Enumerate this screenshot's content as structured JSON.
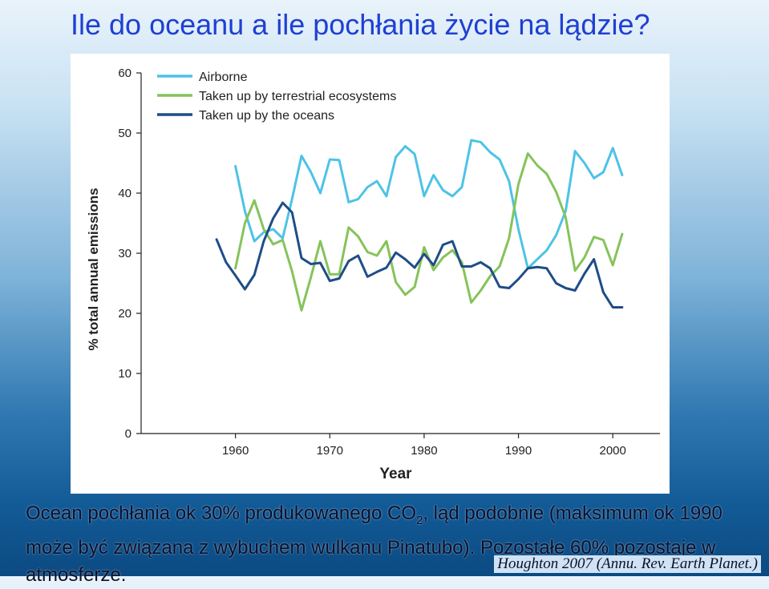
{
  "slide": {
    "title": "Ile do oceanu a ile pochłania życie na lądzie?",
    "caption_part1": "Ocean pochłania ok 30% produkowanego CO",
    "caption_sub": "2",
    "caption_part2": ", ląd podobnie (maksimum ok 1990 może być związana z wybuchem wulkanu Pinatubo). Pozostałe 60% pozostaje w atmosferze.",
    "citation": "Houghton 2007 (Annu. Rev. Earth Planet.)"
  },
  "chart_data": {
    "type": "line",
    "xlabel": "Year",
    "ylabel": "% total annual emissions",
    "xlim": [
      1950,
      2005
    ],
    "ylim": [
      0,
      60
    ],
    "xticks": [
      1960,
      1970,
      1980,
      1990,
      2000
    ],
    "yticks": [
      0,
      10,
      20,
      30,
      40,
      50,
      60
    ],
    "grid": false,
    "legend": "top-left",
    "series": [
      {
        "name": "Airborne",
        "color": "#4dc3e6",
        "x": [
          1960,
          1961,
          1962,
          1963,
          1964,
          1965,
          1966,
          1967,
          1968,
          1969,
          1970,
          1971,
          1972,
          1973,
          1974,
          1975,
          1976,
          1977,
          1978,
          1979,
          1980,
          1981,
          1982,
          1983,
          1984,
          1985,
          1986,
          1987,
          1988,
          1989,
          1990,
          1991,
          1992,
          1993,
          1994,
          1995,
          1996,
          1997,
          1998,
          1999,
          2000,
          2001
        ],
        "y": [
          44.5,
          37,
          32,
          33.5,
          34,
          32.5,
          39,
          46.2,
          43.5,
          40,
          45.6,
          45.5,
          38.5,
          39,
          41,
          42,
          39.5,
          46,
          47.8,
          46.5,
          39.5,
          43,
          40.5,
          39.5,
          41,
          48.8,
          48.5,
          46.8,
          45.6,
          42,
          34,
          27.5,
          29,
          30.5,
          33,
          37,
          47,
          45,
          42.5,
          43.5,
          47.5,
          43
        ]
      },
      {
        "name": "Taken up by terrestrial ecosystems",
        "color": "#86c35b",
        "x": [
          1960,
          1961,
          1962,
          1963,
          1964,
          1965,
          1966,
          1967,
          1968,
          1969,
          1970,
          1971,
          1972,
          1973,
          1974,
          1975,
          1976,
          1977,
          1978,
          1979,
          1980,
          1981,
          1982,
          1983,
          1984,
          1985,
          1986,
          1987,
          1988,
          1989,
          1990,
          1991,
          1992,
          1993,
          1994,
          1995,
          1996,
          1997,
          1998,
          1999,
          2000,
          2001
        ],
        "y": [
          27.5,
          35,
          38.8,
          34,
          31.5,
          32.2,
          27,
          20.5,
          26,
          32,
          26.5,
          26.5,
          34.3,
          32.8,
          30.2,
          29.6,
          32,
          25.2,
          23.1,
          24.4,
          31,
          27.2,
          29.3,
          30.5,
          28.5,
          21.8,
          23.8,
          26.2,
          27.8,
          32.5,
          41.5,
          46.6,
          44.6,
          43.2,
          40.2,
          36,
          27.1,
          29.3,
          32.7,
          32.2,
          28,
          33.2
        ]
      },
      {
        "name": "Taken up by the oceans",
        "color": "#1f4d87",
        "x": [
          1958,
          1959,
          1960,
          1961,
          1962,
          1963,
          1964,
          1965,
          1966,
          1967,
          1968,
          1969,
          1970,
          1971,
          1972,
          1973,
          1974,
          1975,
          1976,
          1977,
          1978,
          1979,
          1980,
          1981,
          1982,
          1983,
          1984,
          1985,
          1986,
          1987,
          1988,
          1989,
          1990,
          1991,
          1992,
          1993,
          1994,
          1995,
          1996,
          1997,
          1998,
          1999,
          2000,
          2001
        ],
        "y": [
          32.3,
          28.5,
          26.3,
          24,
          26.4,
          32,
          35.8,
          38.4,
          36.8,
          29.2,
          28.2,
          28.4,
          25.4,
          25.8,
          28.7,
          29.6,
          26.1,
          26.9,
          27.6,
          30.1,
          29,
          27.6,
          29.9,
          28,
          31.4,
          32,
          27.8,
          27.8,
          28.5,
          27.5,
          24.4,
          24.2,
          25.7,
          27.5,
          27.7,
          27.5,
          25,
          24.2,
          23.8,
          26.6,
          29,
          23.5,
          21,
          21
        ]
      }
    ]
  }
}
